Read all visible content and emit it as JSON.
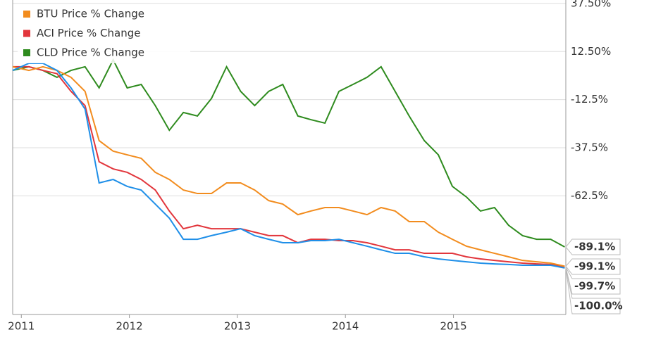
{
  "chart_data": {
    "type": "line",
    "x": [
      2010.92,
      2011.07,
      2011.2,
      2011.33,
      2011.46,
      2011.59,
      2011.72,
      2011.85,
      2011.98,
      2012.11,
      2012.24,
      2012.37,
      2012.5,
      2012.63,
      2012.76,
      2012.9,
      2013.03,
      2013.16,
      2013.29,
      2013.42,
      2013.56,
      2013.68,
      2013.81,
      2013.94,
      2014.07,
      2014.2,
      2014.33,
      2014.46,
      2014.59,
      2014.73,
      2014.86,
      2014.99,
      2015.12,
      2015.25,
      2015.38,
      2015.51,
      2015.64,
      2015.77,
      2015.9,
      2016.03
    ],
    "series": [
      {
        "color": "#1f8fe8",
        "end_label": "-100.0%",
        "values": [
          2.7,
          6.4,
          6.4,
          2.7,
          -6.4,
          -17.4,
          -55.8,
          -54.0,
          -57.6,
          -59.5,
          -66.8,
          -74.1,
          -85.1,
          -85.1,
          -83.2,
          -81.4,
          -79.6,
          -83.2,
          -85.1,
          -86.9,
          -86.9,
          -85.8,
          -85.8,
          -85.1,
          -86.9,
          -88.7,
          -90.6,
          -92.4,
          -92.4,
          -94.2,
          -95.3,
          -96.1,
          -96.8,
          -97.5,
          -97.9,
          -98.2,
          -98.6,
          -98.6,
          -98.6,
          -100.0
        ]
      },
      {
        "name": "BTU Price % Change",
        "color": "#f28c1e",
        "end_label": "-99.1%",
        "values": [
          4.6,
          2.7,
          4.6,
          2.7,
          -0.9,
          -8.2,
          -33.8,
          -39.3,
          -41.2,
          -43.0,
          -50.3,
          -54.0,
          -59.5,
          -61.3,
          -61.3,
          -55.8,
          -55.8,
          -59.5,
          -65.0,
          -66.8,
          -72.3,
          -70.4,
          -68.6,
          -68.6,
          -70.4,
          -72.3,
          -68.6,
          -70.4,
          -75.9,
          -75.9,
          -81.4,
          -85.1,
          -88.7,
          -90.6,
          -92.4,
          -94.2,
          -96.1,
          -96.8,
          -97.5,
          -99.1
        ]
      },
      {
        "name": "ACI Price % Change",
        "color": "#e2363c",
        "end_label": "-99.7%",
        "values": [
          4.6,
          4.6,
          2.7,
          1.0,
          -8.2,
          -15.6,
          -44.8,
          -48.5,
          -50.3,
          -54.0,
          -59.5,
          -70.4,
          -79.6,
          -77.8,
          -79.6,
          -79.6,
          -79.6,
          -81.4,
          -83.2,
          -83.2,
          -86.9,
          -85.1,
          -85.1,
          -85.8,
          -85.8,
          -86.9,
          -88.7,
          -90.6,
          -90.6,
          -92.4,
          -92.4,
          -92.4,
          -94.2,
          -95.3,
          -96.1,
          -96.8,
          -97.5,
          -97.9,
          -98.2,
          -99.7
        ]
      },
      {
        "name": "CLD Price % Change",
        "color": "#2e8b1e",
        "end_label": "-89.1%",
        "values": [
          2.7,
          4.6,
          2.7,
          -0.9,
          2.7,
          4.6,
          -6.4,
          8.2,
          -6.4,
          -4.6,
          -15.6,
          -28.4,
          -19.2,
          -21.0,
          -11.9,
          4.6,
          -8.2,
          -15.6,
          -8.2,
          -4.6,
          -21.0,
          -22.9,
          -24.7,
          -8.2,
          -4.6,
          -0.9,
          4.6,
          -8.2,
          -21.0,
          -33.8,
          -41.2,
          -57.6,
          -63.1,
          -70.4,
          -68.6,
          -77.8,
          -83.2,
          -85.1,
          -85.1,
          -89.1
        ]
      }
    ],
    "xlim": [
      2010.92,
      2016.04
    ],
    "xticks": [
      2011,
      2012,
      2013,
      2014,
      2015
    ],
    "ylim": [
      -124.2,
      39.3
    ],
    "yticks": [
      {
        "value": 37.5,
        "label": "37.50%"
      },
      {
        "value": 12.5,
        "label": "12.50%"
      },
      {
        "value": -12.5,
        "label": "-12.5%"
      },
      {
        "value": -37.5,
        "label": "-37.5%"
      },
      {
        "value": -62.5,
        "label": "-62.5%"
      }
    ],
    "grid": true
  }
}
